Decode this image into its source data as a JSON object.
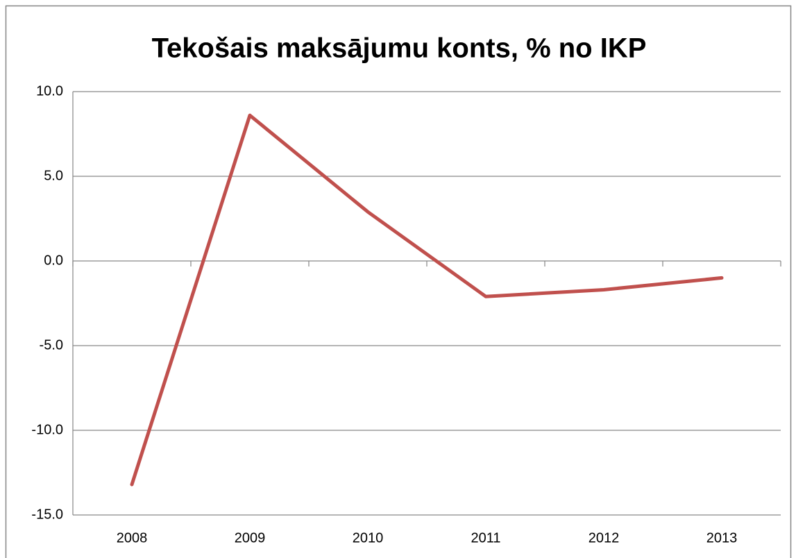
{
  "chart_data": {
    "type": "line",
    "title": "Tekošais maksājumu konts, % no IKP",
    "categories": [
      "2008",
      "2009",
      "2010",
      "2011",
      "2012",
      "2013"
    ],
    "series": [
      {
        "name": null,
        "color": "#c0504d",
        "values": [
          -13.2,
          8.6,
          2.9,
          -2.1,
          -1.7,
          -1.0
        ]
      }
    ],
    "ylim": [
      -15,
      10
    ],
    "yticks": [
      {
        "value": -15,
        "label": "-15.0"
      },
      {
        "value": -10,
        "label": "-10.0"
      },
      {
        "value": -5,
        "label": "-5.0"
      },
      {
        "value": 0,
        "label": "0.0"
      },
      {
        "value": 5,
        "label": "5.0"
      },
      {
        "value": 10,
        "label": "10.0"
      }
    ],
    "grid": true
  }
}
